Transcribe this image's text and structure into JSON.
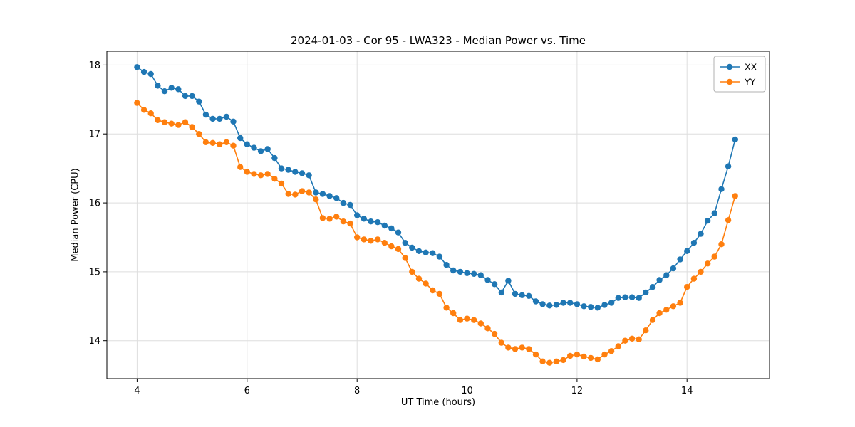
{
  "chart_data": {
    "type": "line",
    "title": "2024-01-03 - Cor 95 - LWA323 - Median Power vs. Time",
    "xlabel": "UT Time (hours)",
    "ylabel": "Median Power (CPU)",
    "xlim": [
      3.45,
      15.5
    ],
    "ylim": [
      13.45,
      18.2
    ],
    "xticks": [
      4,
      6,
      8,
      10,
      12,
      14
    ],
    "yticks": [
      14,
      15,
      16,
      17,
      18
    ],
    "grid": true,
    "legend_position": "upper right",
    "x": [
      4.0,
      4.125,
      4.25,
      4.375,
      4.5,
      4.625,
      4.75,
      4.875,
      5.0,
      5.125,
      5.25,
      5.375,
      5.5,
      5.625,
      5.75,
      5.875,
      6.0,
      6.125,
      6.25,
      6.375,
      6.5,
      6.625,
      6.75,
      6.875,
      7.0,
      7.125,
      7.25,
      7.375,
      7.5,
      7.625,
      7.75,
      7.875,
      8.0,
      8.125,
      8.25,
      8.375,
      8.5,
      8.625,
      8.75,
      8.875,
      9.0,
      9.125,
      9.25,
      9.375,
      9.5,
      9.625,
      9.75,
      9.875,
      10.0,
      10.125,
      10.25,
      10.375,
      10.5,
      10.625,
      10.75,
      10.875,
      11.0,
      11.125,
      11.25,
      11.375,
      11.5,
      11.625,
      11.75,
      11.875,
      12.0,
      12.125,
      12.25,
      12.375,
      12.5,
      12.625,
      12.75,
      12.875,
      13.0,
      13.125,
      13.25,
      13.375,
      13.5,
      13.625,
      13.75,
      13.875,
      14.0,
      14.125,
      14.25,
      14.375,
      14.5,
      14.625,
      14.75,
      14.875
    ],
    "series": [
      {
        "name": "XX",
        "color": "#1f77b4",
        "marker": "circle",
        "values": [
          17.97,
          17.9,
          17.87,
          17.7,
          17.62,
          17.67,
          17.65,
          17.55,
          17.55,
          17.47,
          17.28,
          17.22,
          17.22,
          17.25,
          17.18,
          16.94,
          16.85,
          16.8,
          16.75,
          16.78,
          16.65,
          16.5,
          16.48,
          16.45,
          16.43,
          16.4,
          16.15,
          16.13,
          16.1,
          16.07,
          16.0,
          15.97,
          15.82,
          15.77,
          15.73,
          15.72,
          15.67,
          15.63,
          15.57,
          15.42,
          15.35,
          15.3,
          15.28,
          15.27,
          15.22,
          15.1,
          15.02,
          15.0,
          14.98,
          14.97,
          14.95,
          14.88,
          14.82,
          14.7,
          14.87,
          14.68,
          14.66,
          14.65,
          14.57,
          14.53,
          14.51,
          14.52,
          14.55,
          14.55,
          14.53,
          14.5,
          14.49,
          14.48,
          14.52,
          14.55,
          14.62,
          14.63,
          14.63,
          14.62,
          14.7,
          14.78,
          14.88,
          14.95,
          15.05,
          15.18,
          15.3,
          15.42,
          15.55,
          15.74,
          15.85,
          16.2,
          16.53,
          16.92
        ]
      },
      {
        "name": "YY",
        "color": "#ff7f0e",
        "marker": "circle",
        "values": [
          17.45,
          17.35,
          17.3,
          17.2,
          17.17,
          17.15,
          17.13,
          17.17,
          17.1,
          17.0,
          16.88,
          16.87,
          16.85,
          16.88,
          16.83,
          16.52,
          16.45,
          16.42,
          16.4,
          16.42,
          16.35,
          16.28,
          16.13,
          16.12,
          16.17,
          16.15,
          16.05,
          15.78,
          15.77,
          15.8,
          15.73,
          15.7,
          15.5,
          15.47,
          15.45,
          15.47,
          15.42,
          15.37,
          15.33,
          15.2,
          15.0,
          14.9,
          14.83,
          14.73,
          14.68,
          14.48,
          14.4,
          14.3,
          14.32,
          14.3,
          14.25,
          14.18,
          14.1,
          13.97,
          13.9,
          13.88,
          13.9,
          13.88,
          13.8,
          13.7,
          13.68,
          13.7,
          13.72,
          13.78,
          13.8,
          13.77,
          13.75,
          13.73,
          13.8,
          13.85,
          13.92,
          14.0,
          14.03,
          14.02,
          14.15,
          14.3,
          14.4,
          14.45,
          14.5,
          14.55,
          14.78,
          14.9,
          15.0,
          15.12,
          15.22,
          15.4,
          15.75,
          16.1
        ]
      }
    ]
  }
}
